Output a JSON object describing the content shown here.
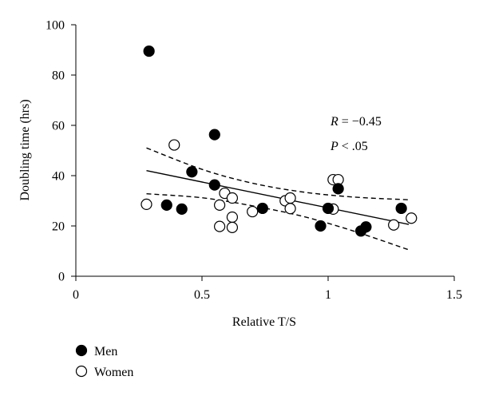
{
  "chart_data": {
    "type": "scatter",
    "xlabel": "Relative T/S",
    "ylabel": "Doubling time (hrs)",
    "xlim": [
      0,
      1.5
    ],
    "ylim": [
      0,
      100
    ],
    "xticks": [
      0,
      0.5,
      1,
      1.5
    ],
    "xtick_labels": [
      "0",
      "0.5",
      "1",
      "1.5"
    ],
    "yticks": [
      0,
      20,
      40,
      60,
      80,
      100
    ],
    "ytick_labels": [
      "0",
      "20",
      "40",
      "60",
      "80",
      "100"
    ],
    "legend_position": "bottom-left",
    "annotation": {
      "r_symbol": "R",
      "r_value": " = −0.45",
      "p_symbol": "P",
      "p_value": " < .05"
    },
    "series": [
      {
        "name": "Men",
        "marker": "filled-circle",
        "color": "#000000",
        "points": [
          [
            0.29,
            89.5
          ],
          [
            0.36,
            28.3
          ],
          [
            0.42,
            26.7
          ],
          [
            0.46,
            41.5
          ],
          [
            0.55,
            36.3
          ],
          [
            0.55,
            56.3
          ],
          [
            0.74,
            27.0
          ],
          [
            0.97,
            20.0
          ],
          [
            1.0,
            27.0
          ],
          [
            1.04,
            34.8
          ],
          [
            1.13,
            18.0
          ],
          [
            1.15,
            19.6
          ],
          [
            1.29,
            27.0
          ]
        ]
      },
      {
        "name": "Women",
        "marker": "open-circle",
        "color": "#000000",
        "points": [
          [
            0.28,
            28.6
          ],
          [
            0.39,
            52.2
          ],
          [
            0.57,
            28.3
          ],
          [
            0.57,
            19.8
          ],
          [
            0.59,
            33.0
          ],
          [
            0.62,
            31.1
          ],
          [
            0.62,
            23.5
          ],
          [
            0.62,
            19.4
          ],
          [
            0.7,
            25.7
          ],
          [
            0.83,
            30.0
          ],
          [
            0.85,
            26.9
          ],
          [
            0.85,
            31.1
          ],
          [
            1.02,
            38.4
          ],
          [
            1.02,
            26.7
          ],
          [
            1.04,
            38.4
          ],
          [
            1.26,
            20.4
          ],
          [
            1.33,
            23.1
          ]
        ]
      }
    ],
    "regression_line": [
      [
        0.28,
        42.0
      ],
      [
        1.32,
        20.6
      ]
    ],
    "confidence_upper": [
      [
        0.28,
        51.0
      ],
      [
        0.5,
        42.5
      ],
      [
        0.7,
        37.0
      ],
      [
        0.9,
        33.5
      ],
      [
        1.1,
        31.5
      ],
      [
        1.32,
        30.4
      ]
    ],
    "confidence_lower": [
      [
        0.28,
        32.8
      ],
      [
        0.5,
        31.2
      ],
      [
        0.7,
        28.0
      ],
      [
        0.9,
        23.8
      ],
      [
        1.1,
        18.0
      ],
      [
        1.32,
        10.5
      ]
    ]
  }
}
